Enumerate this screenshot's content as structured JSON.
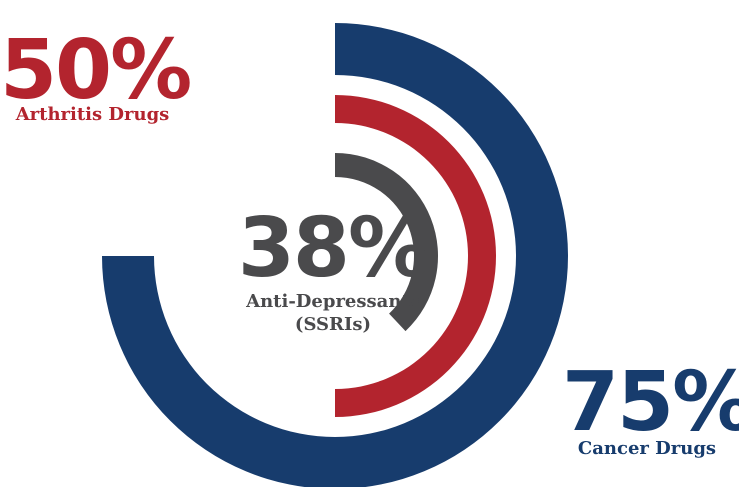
{
  "chart_data": {
    "type": "radial-bar",
    "series": [
      {
        "name": "Cancer Drugs",
        "value": 75,
        "value_label": "75%",
        "color": "#173c6d"
      },
      {
        "name": "Arthritis Drugs",
        "value": 50,
        "value_label": "50%",
        "color": "#b3242e"
      },
      {
        "name": "Anti-Depressants (SSRIs)",
        "value": 38,
        "value_label": "38%",
        "color": "#4a4a4c",
        "caption_lines": [
          "Anti-Depressants",
          "(SSRIs)"
        ]
      }
    ],
    "max": 100
  }
}
